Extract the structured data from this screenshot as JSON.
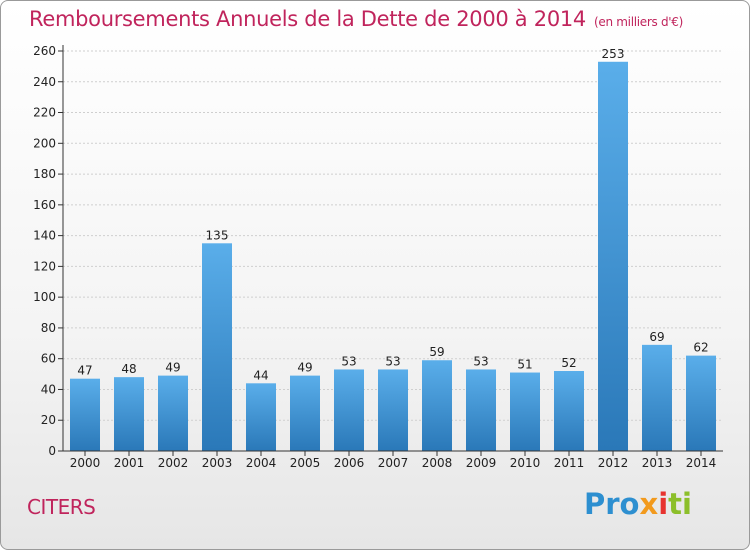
{
  "chart_data": {
    "type": "bar",
    "title": "Remboursements Annuels de la Dette de 2000 à 2014",
    "unit_note": "(en milliers d'€)",
    "categories": [
      "2000",
      "2001",
      "2002",
      "2003",
      "2004",
      "2005",
      "2006",
      "2007",
      "2008",
      "2009",
      "2010",
      "2011",
      "2012",
      "2013",
      "2014"
    ],
    "values": [
      47,
      48,
      49,
      135,
      44,
      49,
      53,
      53,
      59,
      53,
      51,
      52,
      253,
      69,
      62
    ],
    "ylim": [
      0,
      260
    ],
    "yticks": [
      0,
      20,
      40,
      60,
      80,
      100,
      120,
      140,
      160,
      180,
      200,
      220,
      240,
      260
    ],
    "grid": true,
    "bar_color_light": "#5aaeea",
    "bar_color_dark": "#2a78b8"
  },
  "footer": {
    "commune": "CITERS",
    "logo_parts": [
      "Pro",
      "x",
      "i",
      "ti"
    ]
  }
}
